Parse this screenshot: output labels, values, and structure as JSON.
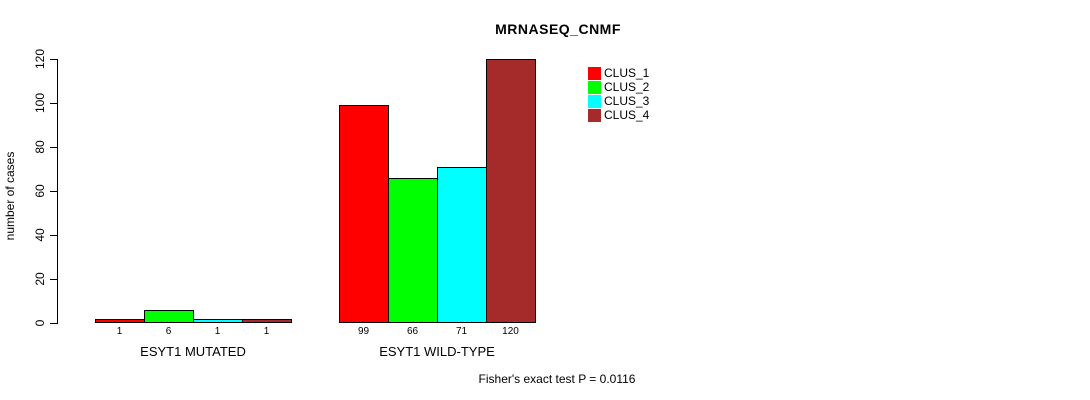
{
  "title": "MRNASEQ_CNMF",
  "footer": "Fisher's exact test P = 0.0116",
  "legend": {
    "items": [
      {
        "label": "CLUS_1",
        "color": "#FF0000"
      },
      {
        "label": "CLUS_2",
        "color": "#00FF00"
      },
      {
        "label": "CLUS_3",
        "color": "#00FFFF"
      },
      {
        "label": "CLUS_4",
        "color": "#A52A2A"
      }
    ]
  },
  "chart_data": {
    "type": "bar",
    "title": "MRNASEQ_CNMF",
    "xlabel": "",
    "ylabel": "number of cases",
    "ylim": [
      0,
      120
    ],
    "yticks": [
      0,
      20,
      40,
      60,
      80,
      100,
      120
    ],
    "grid": false,
    "legend_position": "top-right",
    "categories": [
      "ESYT1 MUTATED",
      "ESYT1 WILD-TYPE"
    ],
    "series": [
      {
        "name": "CLUS_1",
        "color": "#FF0000",
        "values": [
          1,
          99
        ]
      },
      {
        "name": "CLUS_2",
        "color": "#00FF00",
        "values": [
          6,
          66
        ]
      },
      {
        "name": "CLUS_3",
        "color": "#00FFFF",
        "values": [
          1,
          71
        ]
      },
      {
        "name": "CLUS_4",
        "color": "#A52A2A",
        "values": [
          1,
          120
        ]
      }
    ],
    "bar_value_labels": [
      [
        "1",
        "6",
        "1",
        "1"
      ],
      [
        "99",
        "66",
        "71",
        "120"
      ]
    ],
    "annotation": "Fisher's exact test P = 0.0116"
  }
}
